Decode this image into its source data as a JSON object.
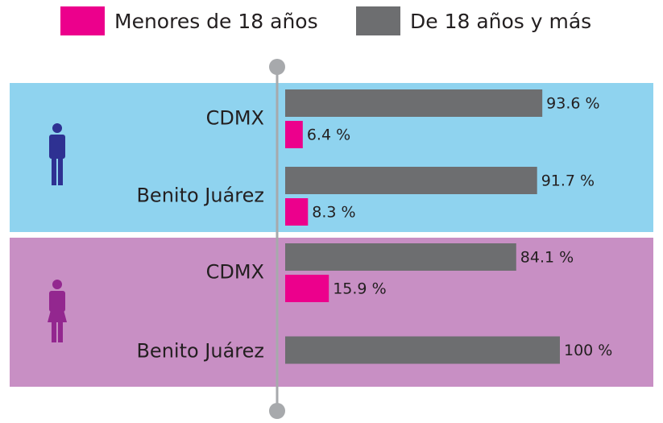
{
  "chart_data": {
    "type": "bar",
    "orientation": "horizontal",
    "categories": [
      "CDMX",
      "Benito Juárez",
      "CDMX",
      "Benito Juárez"
    ],
    "xlim": [
      0,
      100
    ],
    "series": [
      {
        "name": "De 18 años y más",
        "color": "#6d6e70",
        "values": [
          93.6,
          91.7,
          84.1,
          100
        ],
        "value_labels": [
          "93.6 %",
          "91.7 %",
          "84.1 %",
          "100 %"
        ]
      },
      {
        "name": "Menores de 18 años",
        "color": "#ec008c",
        "values": [
          6.4,
          8.3,
          15.9,
          null
        ],
        "value_labels": [
          "6.4 %",
          "8.3 %",
          "15.9 %",
          null
        ]
      }
    ],
    "legend_order": [
      1,
      0
    ]
  }
}
